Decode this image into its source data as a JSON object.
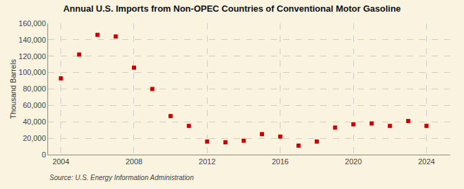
{
  "chart_data": {
    "type": "scatter",
    "title": "Annual U.S. Imports from Non-OPEC Countries of Conventional Motor Gasoline",
    "y_label": "Thousand Barrels",
    "annotations": [
      "Source: U.S. Energy Information Administration"
    ],
    "x": [
      2004,
      2005,
      2006,
      2007,
      2008,
      2009,
      2010,
      2011,
      2012,
      2013,
      2014,
      2015,
      2016,
      2017,
      2018,
      2019,
      2020,
      2021,
      2022,
      2023,
      2024
    ],
    "values": [
      93000,
      122000,
      146000,
      144000,
      106000,
      80000,
      47000,
      35000,
      16000,
      15000,
      17000,
      25000,
      22000,
      11000,
      16000,
      33000,
      37000,
      38000,
      35000,
      41000,
      35000
    ],
    "color": "#cc0000",
    "marker": "square",
    "xlim": [
      2003.3,
      2025.3
    ],
    "xticks": [
      2004,
      2008,
      2012,
      2016,
      2020,
      2024
    ],
    "ylim": [
      0,
      160000
    ],
    "yticks": [
      0,
      {
        "value": 20000,
        "label": "20,000"
      },
      {
        "value": 40000,
        "label": "40,000"
      },
      {
        "value": 60000,
        "label": "60,000"
      },
      {
        "value": 80000,
        "label": "80,000"
      },
      {
        "value": 100000,
        "label": "100,000"
      },
      {
        "value": 120000,
        "label": "120,000"
      },
      {
        "value": 140000,
        "label": "140,000"
      },
      {
        "value": 160000,
        "label": "160,000"
      }
    ],
    "grid": true
  }
}
